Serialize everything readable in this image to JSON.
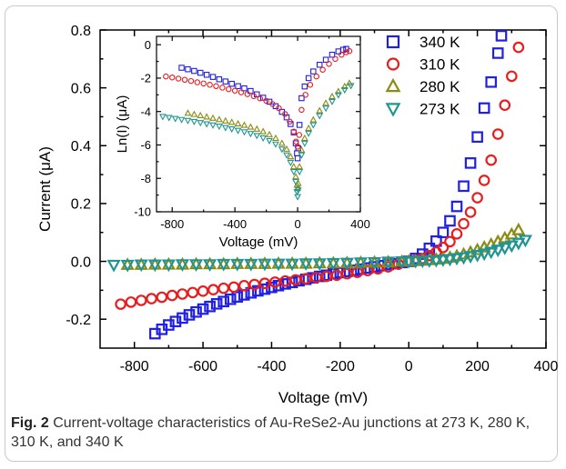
{
  "caption": {
    "label": "Fig. 2",
    "text": " Current-voltage characteristics of Au-ReSe2-Au junctions at 273 K, 280 K, 310 K, and 340 K"
  },
  "chart_data": [
    {
      "type": "scatter",
      "xlabel": "Voltage (mV)",
      "ylabel": "Current (μA)",
      "xlim": [
        -900,
        400
      ],
      "ylim": [
        -0.3,
        0.8
      ],
      "xticks": [
        -800,
        -600,
        -400,
        -200,
        0,
        200,
        400
      ],
      "yticks": [
        -0.2,
        0.0,
        0.2,
        0.4,
        0.6,
        0.8
      ],
      "xtick_labels": [
        "-800",
        "-600",
        "-400",
        "-200",
        "0",
        "200",
        "400"
      ],
      "ytick_labels": [
        "-0.2",
        "0.0",
        "0.2",
        "0.4",
        "0.6",
        "0.8"
      ],
      "grid": false,
      "legend_position": "top-right",
      "series": [
        {
          "name": "340 K",
          "color": "#1f1fe6",
          "marker": "square",
          "x": [
            -740,
            -720,
            -700,
            -680,
            -660,
            -640,
            -620,
            -600,
            -580,
            -560,
            -540,
            -520,
            -500,
            -480,
            -460,
            -440,
            -420,
            -400,
            -380,
            -360,
            -340,
            -320,
            -300,
            -280,
            -260,
            -240,
            -220,
            -200,
            -180,
            -160,
            -140,
            -120,
            -100,
            -80,
            -60,
            -40,
            -20,
            0,
            20,
            40,
            60,
            80,
            100,
            120,
            140,
            160,
            180,
            200,
            220,
            240,
            260,
            270
          ],
          "y": [
            -0.25,
            -0.235,
            -0.22,
            -0.208,
            -0.196,
            -0.185,
            -0.175,
            -0.165,
            -0.156,
            -0.147,
            -0.139,
            -0.131,
            -0.123,
            -0.116,
            -0.109,
            -0.102,
            -0.096,
            -0.09,
            -0.084,
            -0.078,
            -0.073,
            -0.067,
            -0.062,
            -0.057,
            -0.052,
            -0.048,
            -0.043,
            -0.039,
            -0.035,
            -0.031,
            -0.027,
            -0.023,
            -0.019,
            -0.015,
            -0.011,
            -0.008,
            -0.004,
            0.0,
            0.01,
            0.025,
            0.045,
            0.07,
            0.1,
            0.14,
            0.19,
            0.26,
            0.34,
            0.43,
            0.53,
            0.62,
            0.72,
            0.78
          ]
        },
        {
          "name": "310 K",
          "color": "#e81e1e",
          "marker": "circle",
          "x": [
            -840,
            -810,
            -780,
            -750,
            -720,
            -690,
            -660,
            -630,
            -600,
            -570,
            -540,
            -510,
            -480,
            -450,
            -420,
            -390,
            -360,
            -330,
            -300,
            -270,
            -240,
            -210,
            -180,
            -150,
            -120,
            -90,
            -60,
            -30,
            0,
            20,
            40,
            60,
            80,
            100,
            120,
            140,
            160,
            180,
            200,
            220,
            240,
            260,
            280,
            300,
            320
          ],
          "y": [
            -0.148,
            -0.141,
            -0.135,
            -0.129,
            -0.124,
            -0.118,
            -0.113,
            -0.108,
            -0.103,
            -0.098,
            -0.093,
            -0.089,
            -0.084,
            -0.08,
            -0.076,
            -0.072,
            -0.068,
            -0.064,
            -0.06,
            -0.056,
            -0.052,
            -0.048,
            -0.043,
            -0.038,
            -0.032,
            -0.026,
            -0.019,
            -0.01,
            0.0,
            0.004,
            0.01,
            0.02,
            0.032,
            0.048,
            0.068,
            0.095,
            0.13,
            0.17,
            0.22,
            0.28,
            0.35,
            0.44,
            0.54,
            0.64,
            0.74
          ]
        },
        {
          "name": "280 K",
          "color": "#8b8b12",
          "marker": "triangle-up",
          "x": [
            -820,
            -780,
            -740,
            -700,
            -660,
            -620,
            -580,
            -540,
            -500,
            -460,
            -420,
            -380,
            -340,
            -300,
            -260,
            -220,
            -180,
            -140,
            -100,
            -60,
            -20,
            0,
            20,
            40,
            60,
            80,
            100,
            120,
            140,
            160,
            180,
            200,
            220,
            240,
            260,
            280,
            300,
            320
          ],
          "y": [
            -0.012,
            -0.012,
            -0.011,
            -0.011,
            -0.011,
            -0.01,
            -0.01,
            -0.01,
            -0.009,
            -0.009,
            -0.009,
            -0.008,
            -0.008,
            -0.008,
            -0.007,
            -0.007,
            -0.006,
            -0.005,
            -0.004,
            -0.003,
            -0.001,
            0.0,
            0.001,
            0.002,
            0.004,
            0.006,
            0.009,
            0.013,
            0.018,
            0.024,
            0.031,
            0.039,
            0.048,
            0.058,
            0.068,
            0.08,
            0.093,
            0.108
          ]
        },
        {
          "name": "273 K",
          "color": "#1f9494",
          "marker": "triangle-down",
          "x": [
            -860,
            -820,
            -780,
            -740,
            -700,
            -660,
            -620,
            -580,
            -540,
            -500,
            -460,
            -420,
            -380,
            -340,
            -300,
            -260,
            -220,
            -180,
            -140,
            -100,
            -60,
            -20,
            0,
            20,
            40,
            60,
            80,
            100,
            120,
            140,
            160,
            180,
            200,
            220,
            240,
            260,
            280,
            300,
            320,
            340
          ],
          "y": [
            -0.012,
            -0.012,
            -0.011,
            -0.011,
            -0.011,
            -0.01,
            -0.01,
            -0.01,
            -0.009,
            -0.009,
            -0.009,
            -0.008,
            -0.008,
            -0.008,
            -0.007,
            -0.007,
            -0.006,
            -0.005,
            -0.004,
            -0.003,
            -0.001,
            0.0,
            0.0,
            0.001,
            0.002,
            0.003,
            0.004,
            0.006,
            0.008,
            0.011,
            0.014,
            0.018,
            0.022,
            0.027,
            0.033,
            0.04,
            0.047,
            0.055,
            0.064,
            0.074
          ]
        }
      ]
    },
    {
      "type": "scatter",
      "xlabel": "Voltage (mV)",
      "ylabel": "Ln(I) (μA)",
      "xlim": [
        -900,
        400
      ],
      "ylim": [
        -10,
        0.5
      ],
      "xticks": [
        -800,
        -400,
        0,
        400
      ],
      "yticks": [
        -10,
        -8,
        -6,
        -4,
        -2,
        0
      ],
      "xtick_labels": [
        "-800",
        "-400",
        "0",
        "400"
      ],
      "ytick_labels": [
        "-10",
        "-8",
        "-6",
        "-4",
        "-2",
        "0"
      ],
      "grid": false,
      "series": [
        {
          "name": "340 K",
          "color": "#1f1fe6",
          "marker": "square",
          "x": [
            -740,
            -700,
            -660,
            -620,
            -580,
            -540,
            -500,
            -460,
            -420,
            -380,
            -340,
            -300,
            -260,
            -220,
            -180,
            -140,
            -100,
            -70,
            -45,
            -25,
            -12,
            -4,
            0,
            4,
            12,
            25,
            45,
            70,
            100,
            140,
            180,
            220,
            260,
            290,
            310
          ],
          "y": [
            -1.38,
            -1.47,
            -1.57,
            -1.68,
            -1.8,
            -1.93,
            -2.07,
            -2.2,
            -2.34,
            -2.48,
            -2.61,
            -2.77,
            -2.97,
            -3.17,
            -3.41,
            -3.68,
            -4.02,
            -4.35,
            -4.75,
            -5.25,
            -5.9,
            -6.5,
            -6.8,
            -6.2,
            -4.8,
            -3.2,
            -2.5,
            -2.0,
            -1.6,
            -1.2,
            -0.9,
            -0.6,
            -0.4,
            -0.3,
            -0.25
          ]
        },
        {
          "name": "310 K",
          "color": "#e81e1e",
          "marker": "circle",
          "x": [
            -840,
            -800,
            -760,
            -720,
            -680,
            -640,
            -600,
            -560,
            -520,
            -480,
            -440,
            -400,
            -360,
            -320,
            -280,
            -240,
            -200,
            -160,
            -120,
            -80,
            -50,
            -25,
            -10,
            0,
            10,
            25,
            50,
            80,
            120,
            160,
            200,
            240,
            280,
            310,
            330
          ],
          "y": [
            -1.9,
            -1.96,
            -2.03,
            -2.1,
            -2.17,
            -2.25,
            -2.32,
            -2.4,
            -2.48,
            -2.57,
            -2.66,
            -2.75,
            -2.85,
            -2.96,
            -3.08,
            -3.21,
            -3.36,
            -3.55,
            -3.8,
            -4.15,
            -4.6,
            -5.2,
            -5.8,
            -6.1,
            -5.4,
            -3.9,
            -3.0,
            -2.4,
            -1.9,
            -1.5,
            -1.15,
            -0.85,
            -0.6,
            -0.45,
            -0.38
          ]
        },
        {
          "name": "280 K",
          "color": "#8b8b12",
          "marker": "triangle-up",
          "x": [
            -700,
            -660,
            -620,
            -580,
            -540,
            -500,
            -460,
            -420,
            -380,
            -340,
            -300,
            -260,
            -220,
            -180,
            -140,
            -100,
            -70,
            -45,
            -25,
            -12,
            -4,
            0,
            4,
            12,
            25,
            45,
            70,
            100,
            140,
            180,
            220,
            260,
            300,
            330
          ],
          "y": [
            -4.1,
            -4.17,
            -4.24,
            -4.32,
            -4.4,
            -4.48,
            -4.56,
            -4.64,
            -4.73,
            -4.82,
            -4.93,
            -5.05,
            -5.2,
            -5.38,
            -5.6,
            -5.9,
            -6.25,
            -6.7,
            -7.3,
            -7.9,
            -8.4,
            -8.6,
            -8.3,
            -7.3,
            -6.3,
            -5.6,
            -5.0,
            -4.5,
            -3.95,
            -3.5,
            -3.1,
            -2.8,
            -2.5,
            -2.3
          ]
        },
        {
          "name": "273 K",
          "color": "#1f9494",
          "marker": "triangle-down",
          "x": [
            -860,
            -820,
            -780,
            -740,
            -700,
            -660,
            -620,
            -580,
            -540,
            -500,
            -460,
            -420,
            -380,
            -340,
            -300,
            -260,
            -220,
            -180,
            -140,
            -100,
            -70,
            -45,
            -25,
            -12,
            -4,
            0,
            4,
            12,
            25,
            45,
            70,
            100,
            140,
            180,
            220,
            260,
            300,
            340
          ],
          "y": [
            -4.3,
            -4.36,
            -4.42,
            -4.48,
            -4.54,
            -4.6,
            -4.67,
            -4.74,
            -4.81,
            -4.88,
            -4.96,
            -5.04,
            -5.13,
            -5.22,
            -5.32,
            -5.44,
            -5.58,
            -5.74,
            -5.95,
            -6.25,
            -6.6,
            -7.05,
            -7.6,
            -8.2,
            -8.8,
            -9.1,
            -8.7,
            -7.6,
            -6.6,
            -5.9,
            -5.3,
            -4.8,
            -4.25,
            -3.8,
            -3.4,
            -3.0,
            -2.7,
            -2.45
          ]
        }
      ]
    }
  ]
}
